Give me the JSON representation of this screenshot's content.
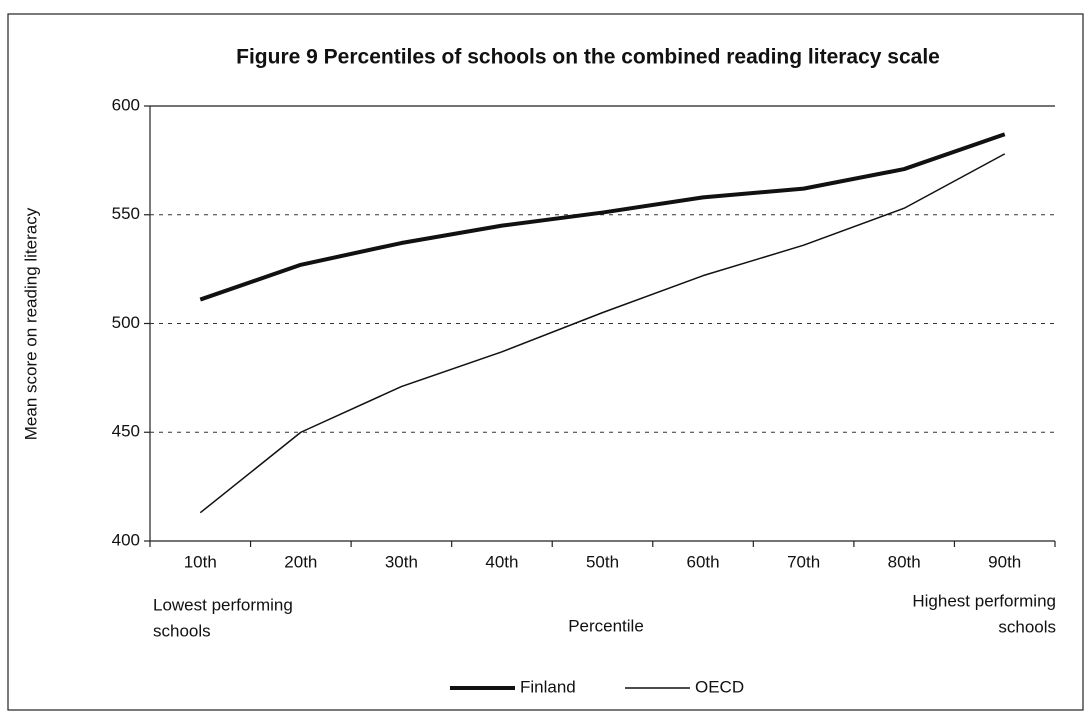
{
  "chart_data": {
    "type": "line",
    "title": "Figure 9  Percentiles of schools on the combined reading literacy scale",
    "y_label": "Mean score on reading literacy",
    "x_label": "Percentile",
    "annotations": [
      [
        "Lowest performing",
        "schools"
      ],
      [
        "Highest performing",
        "schools"
      ]
    ],
    "categories": [
      "10th",
      "20th",
      "30th",
      "40th",
      "50th",
      "60th",
      "70th",
      "80th",
      "90th"
    ],
    "series": [
      {
        "name": "Finland",
        "color": "#111111",
        "width": 4,
        "values": [
          511,
          527,
          537,
          545,
          551,
          558,
          562,
          571,
          587
        ]
      },
      {
        "name": "OECD",
        "color": "#111111",
        "width": 1.5,
        "values": [
          413,
          450,
          471,
          487,
          505,
          522,
          536,
          553,
          578
        ]
      }
    ],
    "ylim": [
      400,
      600
    ],
    "yticks": [
      400,
      450,
      500,
      550,
      600
    ],
    "grid": true,
    "legend": "bottom"
  }
}
